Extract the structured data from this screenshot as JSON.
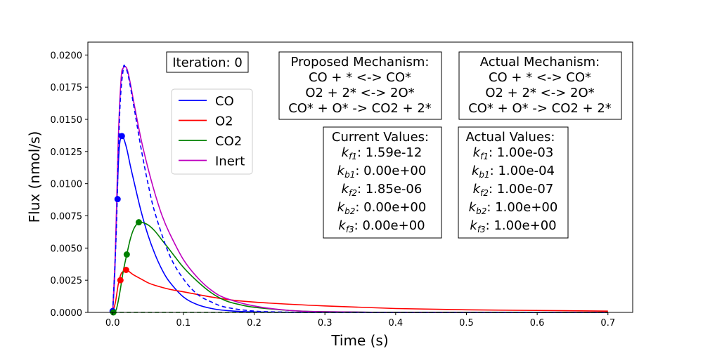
{
  "chart_data": {
    "type": "line",
    "title": "",
    "xlabel": "Time (s)",
    "ylabel": "Flux (nmol/s)",
    "xlim": [
      -0.035,
      0.735
    ],
    "ylim": [
      0.0,
      0.021
    ],
    "x_ticks": [
      "0.0",
      "0.1",
      "0.2",
      "0.3",
      "0.4",
      "0.5",
      "0.6",
      "0.7"
    ],
    "x_tick_values": [
      0.0,
      0.1,
      0.2,
      0.3,
      0.4,
      0.5,
      0.6,
      0.7
    ],
    "y_ticks": [
      "0.0000",
      "0.0025",
      "0.0050",
      "0.0075",
      "0.0100",
      "0.0125",
      "0.0150",
      "0.0175",
      "0.0200"
    ],
    "y_tick_values": [
      0.0,
      0.0025,
      0.005,
      0.0075,
      0.01,
      0.0125,
      0.015,
      0.0175,
      0.02
    ],
    "legend": {
      "placement": "upper-center-left",
      "entries": [
        {
          "name": "CO",
          "color": "#0000ff"
        },
        {
          "name": "O2",
          "color": "#ff0000"
        },
        {
          "name": "CO2",
          "color": "#008000"
        },
        {
          "name": "Inert",
          "color": "#bf00bf"
        }
      ]
    },
    "series": [
      {
        "name": "CO",
        "color": "#0000ff",
        "style": "solid",
        "x": [
          0.0,
          0.003,
          0.006,
          0.009,
          0.012,
          0.015,
          0.02,
          0.025,
          0.03,
          0.04,
          0.05,
          0.06,
          0.07,
          0.08,
          0.1,
          0.12,
          0.14,
          0.16,
          0.2,
          0.3,
          0.7
        ],
        "y": [
          0.0,
          0.003,
          0.0085,
          0.0125,
          0.0137,
          0.0136,
          0.0127,
          0.0114,
          0.0102,
          0.0079,
          0.006,
          0.0045,
          0.0033,
          0.0024,
          0.0012,
          0.0006,
          0.0003,
          0.00015,
          4e-05,
          0.0,
          0.0
        ]
      },
      {
        "name": "O2",
        "color": "#ff0000",
        "style": "solid",
        "x": [
          0.0,
          0.004,
          0.008,
          0.012,
          0.016,
          0.02,
          0.025,
          0.03,
          0.04,
          0.05,
          0.06,
          0.08,
          0.1,
          0.15,
          0.2,
          0.3,
          0.4,
          0.5,
          0.6,
          0.7
        ],
        "y": [
          0.0,
          0.0008,
          0.0022,
          0.003,
          0.0032,
          0.0033,
          0.0031,
          0.0029,
          0.0026,
          0.0023,
          0.0021,
          0.0018,
          0.0016,
          0.0011,
          0.0008,
          0.0005,
          0.0003,
          0.0002,
          0.00015,
          0.0001
        ]
      },
      {
        "name": "CO2",
        "color": "#008000",
        "style": "solid",
        "x": [
          0.0,
          0.005,
          0.01,
          0.015,
          0.02,
          0.025,
          0.03,
          0.035,
          0.04,
          0.05,
          0.06,
          0.07,
          0.08,
          0.1,
          0.12,
          0.14,
          0.16,
          0.18,
          0.2,
          0.25,
          0.3,
          0.4,
          0.5,
          0.7
        ],
        "y": [
          0.0,
          0.0002,
          0.0015,
          0.0032,
          0.0045,
          0.0057,
          0.0065,
          0.0069,
          0.007,
          0.0068,
          0.0063,
          0.0056,
          0.0049,
          0.0035,
          0.0024,
          0.0015,
          0.0009,
          0.0006,
          0.0004,
          0.00015,
          5e-05,
          0.0,
          0.0,
          0.0
        ]
      },
      {
        "name": "Inert",
        "color": "#bf00bf",
        "style": "solid",
        "x": [
          0.0,
          0.004,
          0.008,
          0.012,
          0.015,
          0.018,
          0.021,
          0.025,
          0.03,
          0.04,
          0.05,
          0.06,
          0.07,
          0.08,
          0.1,
          0.12,
          0.14,
          0.16,
          0.2,
          0.25,
          0.3,
          0.4,
          0.5,
          0.7
        ],
        "y": [
          0.0,
          0.005,
          0.0135,
          0.0182,
          0.019,
          0.0191,
          0.0188,
          0.0178,
          0.0163,
          0.0135,
          0.0112,
          0.0092,
          0.0075,
          0.0062,
          0.0041,
          0.0027,
          0.0017,
          0.0011,
          0.0005,
          0.00015,
          5e-05,
          0.0,
          0.0,
          0.0
        ]
      },
      {
        "name": "",
        "color": "#0000ff",
        "style": "dashed",
        "x": [
          0.0,
          0.005,
          0.01,
          0.015,
          0.018,
          0.022,
          0.03,
          0.04,
          0.05,
          0.06,
          0.08,
          0.1,
          0.12,
          0.14,
          0.16,
          0.2,
          0.25,
          0.3,
          0.7
        ],
        "y": [
          0.0,
          0.006,
          0.0155,
          0.0189,
          0.019,
          0.0184,
          0.016,
          0.0128,
          0.01,
          0.0077,
          0.0045,
          0.0026,
          0.0014,
          0.0008,
          0.0004,
          0.0001,
          2e-05,
          0.0,
          0.0
        ]
      },
      {
        "name": "",
        "color": "#008000",
        "style": "dashed",
        "x": [
          0.0,
          0.7
        ],
        "y": [
          0.0,
          0.0
        ]
      }
    ],
    "markers": [
      {
        "x": 0.0,
        "y": 0.0001,
        "color": "#0000ff"
      },
      {
        "x": 0.007,
        "y": 0.0088,
        "color": "#0000ff"
      },
      {
        "x": 0.013,
        "y": 0.0137,
        "color": "#0000ff"
      },
      {
        "x": 0.011,
        "y": 0.0025,
        "color": "#ff0000"
      },
      {
        "x": 0.019,
        "y": 0.0033,
        "color": "#ff0000"
      },
      {
        "x": 0.02,
        "y": 0.0045,
        "color": "#008000"
      },
      {
        "x": 0.037,
        "y": 0.007,
        "color": "#008000"
      },
      {
        "x": 0.001,
        "y": 0.0,
        "color": "#008000"
      }
    ]
  },
  "annotations": {
    "iteration": "Iteration: 0",
    "proposed": {
      "title": "Proposed Mechanism:",
      "lines": [
        "CO + * <-> CO*",
        "O2 + 2* <-> 2O*",
        "CO* + O* -> CO2 + 2*"
      ]
    },
    "actual_mechanism": {
      "title": "Actual Mechanism:",
      "lines": [
        "CO + * <-> CO*",
        "O2 + 2* <-> 2O*",
        "CO* + O* -> CO2 + 2*"
      ]
    },
    "current_values": {
      "title": "Current Values:",
      "rows": [
        {
          "k": "k",
          "sub": "f1",
          "value": ": 1.59e-12"
        },
        {
          "k": "k",
          "sub": "b1",
          "value": ": 0.00e+00"
        },
        {
          "k": "k",
          "sub": "f2",
          "value": ": 1.85e-06"
        },
        {
          "k": "k",
          "sub": "b2",
          "value": ": 0.00e+00"
        },
        {
          "k": "k",
          "sub": "f3",
          "value": ": 0.00e+00"
        }
      ]
    },
    "actual_values": {
      "title": "Actual Values:",
      "rows": [
        {
          "k": "k",
          "sub": "f1",
          "value": ": 1.00e-03"
        },
        {
          "k": "k",
          "sub": "b1",
          "value": ": 1.00e-04"
        },
        {
          "k": "k",
          "sub": "f2",
          "value": ": 1.00e-07"
        },
        {
          "k": "k",
          "sub": "b2",
          "value": ": 1.00e+00"
        },
        {
          "k": "k",
          "sub": "f3",
          "value": ": 1.00e+00"
        }
      ]
    }
  }
}
